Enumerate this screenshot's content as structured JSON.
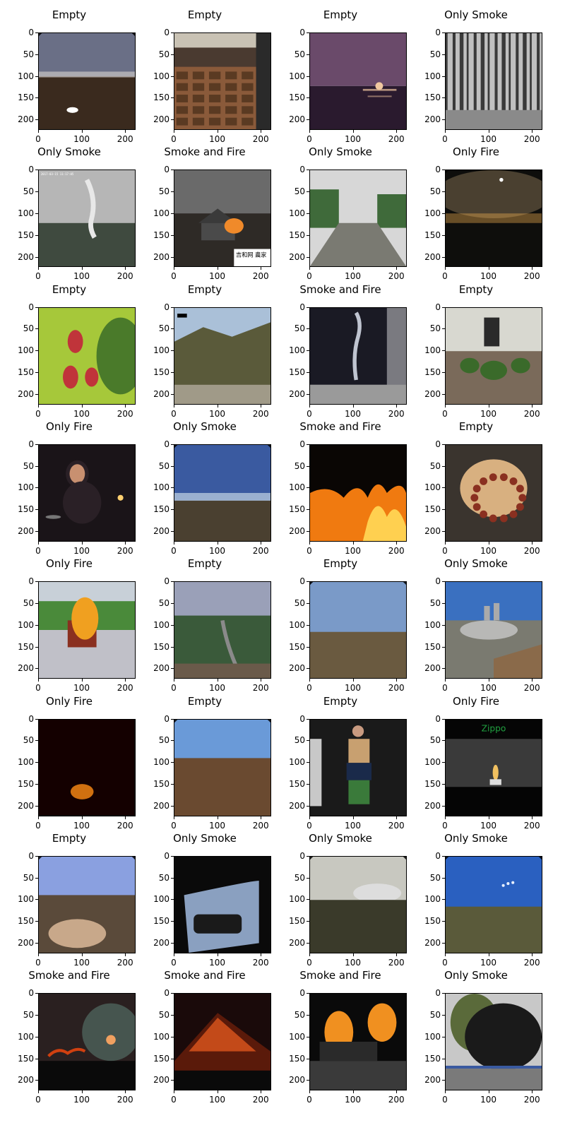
{
  "axis": {
    "y_ticks": [
      "0",
      "50",
      "100",
      "150",
      "200"
    ],
    "x_ticks": [
      "0",
      "100",
      "200"
    ]
  },
  "panels": [
    {
      "title": "Empty",
      "scene": "fisheye-landscape",
      "colors": [
        "#6a6f86",
        "#3a2a1e",
        "#d9d4cf"
      ]
    },
    {
      "title": "Empty",
      "scene": "classroom",
      "colors": [
        "#c9c2b4",
        "#8a5a3a",
        "#4a3a30"
      ]
    },
    {
      "title": "Empty",
      "scene": "sunset-sea",
      "colors": [
        "#6a4a6a",
        "#2a1a2e",
        "#f1c8a0"
      ]
    },
    {
      "title": "Only Smoke",
      "scene": "forest-bw",
      "colors": [
        "#8a8a8a",
        "#3a3a3a",
        "#c0c0c0"
      ]
    },
    {
      "title": "Only Smoke",
      "scene": "smoke-forest",
      "colors": [
        "#b6b6b6",
        "#3f4a3f",
        "#e8e8e8"
      ]
    },
    {
      "title": "Smoke and Fire",
      "scene": "house-fire",
      "colors": [
        "#6a6a6a",
        "#2e2a26",
        "#f08a2a"
      ],
      "watermark": "吉和网 農家"
    },
    {
      "title": "Only Smoke",
      "scene": "road",
      "colors": [
        "#d7d7d7",
        "#7a7a72",
        "#3f6a3a"
      ]
    },
    {
      "title": "Only Fire",
      "scene": "night-city",
      "colors": [
        "#4a4030",
        "#0e0e0c",
        "#f0b050"
      ]
    },
    {
      "title": "Empty",
      "scene": "raspberries",
      "colors": [
        "#a6c83a",
        "#c0343a",
        "#4a7a2a"
      ]
    },
    {
      "title": "Empty",
      "scene": "hills",
      "colors": [
        "#aac0d8",
        "#5a5a3a",
        "#a09a88"
      ]
    },
    {
      "title": "Smoke and Fire",
      "scene": "dark-room-smoke",
      "colors": [
        "#1a1a24",
        "#bfc4d0",
        "#7a7a80"
      ]
    },
    {
      "title": "Empty",
      "scene": "courtyard",
      "colors": [
        "#d8d8d0",
        "#3a6a2a",
        "#7a6a5a"
      ]
    },
    {
      "title": "Only Fire",
      "scene": "woman-candle",
      "colors": [
        "#1a1418",
        "#e0a070",
        "#2a2026"
      ]
    },
    {
      "title": "Only Smoke",
      "scene": "fisheye-blue",
      "colors": [
        "#3a5aa0",
        "#4a4030",
        "#9ab0d0"
      ]
    },
    {
      "title": "Smoke and Fire",
      "scene": "wildfire-night",
      "colors": [
        "#0a0604",
        "#f07a10",
        "#ffd050"
      ]
    },
    {
      "title": "Empty",
      "scene": "beads",
      "colors": [
        "#3a342e",
        "#d8b080",
        "#8a3020"
      ]
    },
    {
      "title": "Only Fire",
      "scene": "truck-fire",
      "colors": [
        "#4a8a3a",
        "#f0a020",
        "#c0c0c8"
      ]
    },
    {
      "title": "Empty",
      "scene": "foggy-valley",
      "colors": [
        "#9aa0b8",
        "#3a5a3a",
        "#6a5a4a"
      ]
    },
    {
      "title": "Empty",
      "scene": "fisheye-plain",
      "colors": [
        "#7a9ac8",
        "#6a5a40",
        "#3a3028"
      ]
    },
    {
      "title": "Only Smoke",
      "scene": "town-smoke",
      "colors": [
        "#3a70c0",
        "#7a7a70",
        "#c8c8c8"
      ]
    },
    {
      "title": "Only Fire",
      "scene": "dark-fire",
      "colors": [
        "#140000",
        "#d07010",
        "#3a0a00"
      ]
    },
    {
      "title": "Empty",
      "scene": "fisheye-mountain",
      "colors": [
        "#6a9ad8",
        "#6a4a30",
        "#2a2a3a"
      ]
    },
    {
      "title": "Empty",
      "scene": "fashion",
      "colors": [
        "#1a1a1a",
        "#c8a070",
        "#3a7a3a"
      ]
    },
    {
      "title": "Only Fire",
      "scene": "lighter",
      "colors": [
        "#050505",
        "#f0c060",
        "#20a040"
      ],
      "overlay_text": "Zippo"
    },
    {
      "title": "Empty",
      "scene": "fisheye-rocks",
      "colors": [
        "#8aa0e0",
        "#5a4a3a",
        "#c8a88a"
      ]
    },
    {
      "title": "Only Smoke",
      "scene": "car-mirror",
      "colors": [
        "#0a0a0a",
        "#8aa0c0",
        "#1a1a1a"
      ]
    },
    {
      "title": "Only Smoke",
      "scene": "fisheye-haze",
      "colors": [
        "#c8c8c0",
        "#3a3a2a",
        "#8a8a80"
      ]
    },
    {
      "title": "Only Smoke",
      "scene": "fisheye-sky",
      "colors": [
        "#2a60c0",
        "#5a5a3a",
        "#e8f0ff"
      ]
    },
    {
      "title": "Smoke and Fire",
      "scene": "sunset-smoke",
      "colors": [
        "#2a2020",
        "#f0a060",
        "#d04010"
      ]
    },
    {
      "title": "Smoke and Fire",
      "scene": "glowing-mountain",
      "colors": [
        "#1a0a0a",
        "#f06020",
        "#0a0a0a"
      ]
    },
    {
      "title": "Smoke and Fire",
      "scene": "car-fire",
      "colors": [
        "#0a0a0a",
        "#f09020",
        "#3a3a3a"
      ]
    },
    {
      "title": "Only Smoke",
      "scene": "black-smoke",
      "colors": [
        "#5a6a3a",
        "#1a1a1a",
        "#c8c8c8"
      ]
    }
  ]
}
